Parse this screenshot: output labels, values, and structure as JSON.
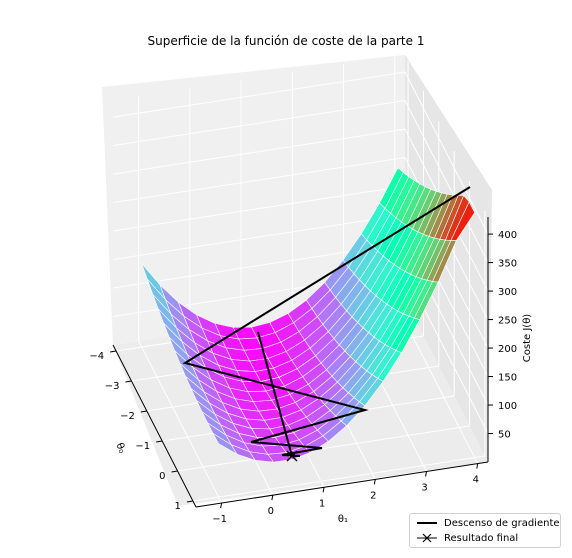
{
  "chart_data": {
    "type": "surface",
    "title": "Superficie de la función de coste de la parte 1",
    "xlabel": "θ₁",
    "ylabel": "θ₀",
    "zlabel": "Coste J(θ)",
    "xlim": [
      -1.5,
      4.2
    ],
    "ylim": [
      -4.2,
      1.2
    ],
    "zlim": [
      0,
      430
    ],
    "x_ticks": [
      "−1",
      "0",
      "1",
      "2",
      "3",
      "4"
    ],
    "y_ticks": [
      "−4",
      "−3",
      "−2",
      "−1",
      "0",
      "1"
    ],
    "z_ticks": [
      "50",
      "100",
      "150",
      "200",
      "250",
      "300",
      "350",
      "400"
    ],
    "colormap": "rainbow",
    "grid": true,
    "legend_position": "lower-right",
    "series": [
      {
        "name": "Descenso de gradiente",
        "style": "line",
        "color": "#000000"
      },
      {
        "name": "Resultado final",
        "style": "marker-x",
        "color": "#000000"
      }
    ]
  }
}
